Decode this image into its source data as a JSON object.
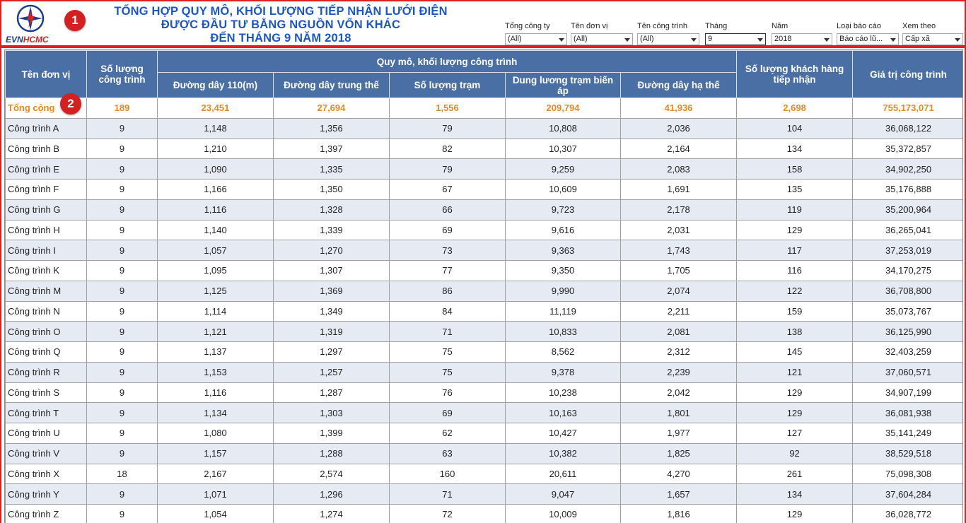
{
  "header": {
    "logo": {
      "evn": "EVN",
      "hcmc": "HCMC"
    },
    "title_lines": [
      "TỔNG HỢP QUY MÔ, KHỐI LƯỢNG TIẾP NHẬN LƯỚI ĐIỆN",
      "ĐƯỢC ĐẦU TƯ BẰNG NGUỒN VỐN KHÁC",
      "ĐẾN THÁNG 9 NĂM 2018"
    ],
    "badge_1": "1",
    "badge_2": "2"
  },
  "filters": [
    {
      "label": "Tổng công ty",
      "value": "(All)"
    },
    {
      "label": "Tên đơn vị",
      "value": "(All)"
    },
    {
      "label": "Tên công trình",
      "value": "(All)"
    },
    {
      "label": "Tháng",
      "value": "9"
    },
    {
      "label": "Năm",
      "value": "2018"
    },
    {
      "label": "Loại báo cáo",
      "value": "Báo cáo lũ..."
    },
    {
      "label": "Xem theo",
      "value": "Cấp xã"
    }
  ],
  "table": {
    "headers": {
      "unit": "Tên đơn vị",
      "count": "Số lượng công trình",
      "group": "Quy mô, khối lượng công trình",
      "line110": "Đường dây 110(m)",
      "medium": "Đường dây trung thế",
      "stations": "Số lượng trạm",
      "capacity": "Dung lương trạm biến áp",
      "low": "Đường dây hạ thế",
      "customers": "Số lượng khách hàng tiếp nhận",
      "value": "Giá trị công trình"
    },
    "total": [
      "Tổng cộng",
      "189",
      "23,451",
      "27,694",
      "1,556",
      "209,794",
      "41,936",
      "2,698",
      "755,173,071"
    ],
    "rows": [
      [
        "Công trình A",
        "9",
        "1,148",
        "1,356",
        "79",
        "10,808",
        "2,036",
        "104",
        "36,068,122"
      ],
      [
        "Công trình B",
        "9",
        "1,210",
        "1,397",
        "82",
        "10,307",
        "2,164",
        "134",
        "35,372,857"
      ],
      [
        "Công trình E",
        "9",
        "1,090",
        "1,335",
        "79",
        "9,259",
        "2,083",
        "158",
        "34,902,250"
      ],
      [
        "Công trình F",
        "9",
        "1,166",
        "1,350",
        "67",
        "10,609",
        "1,691",
        "135",
        "35,176,888"
      ],
      [
        "Công trình G",
        "9",
        "1,116",
        "1,328",
        "66",
        "9,723",
        "2,178",
        "119",
        "35,200,964"
      ],
      [
        "Công trình H",
        "9",
        "1,140",
        "1,339",
        "69",
        "9,616",
        "2,031",
        "129",
        "36,265,041"
      ],
      [
        "Công trình I",
        "9",
        "1,057",
        "1,270",
        "73",
        "9,363",
        "1,743",
        "117",
        "37,253,019"
      ],
      [
        "Công trình K",
        "9",
        "1,095",
        "1,307",
        "77",
        "9,350",
        "1,705",
        "116",
        "34,170,275"
      ],
      [
        "Công trình M",
        "9",
        "1,125",
        "1,369",
        "86",
        "9,990",
        "2,074",
        "122",
        "36,708,800"
      ],
      [
        "Công trình N",
        "9",
        "1,114",
        "1,349",
        "84",
        "11,119",
        "2,211",
        "159",
        "35,073,767"
      ],
      [
        "Công trình O",
        "9",
        "1,121",
        "1,319",
        "71",
        "10,833",
        "2,081",
        "138",
        "36,125,990"
      ],
      [
        "Công trình Q",
        "9",
        "1,137",
        "1,297",
        "75",
        "8,562",
        "2,312",
        "145",
        "32,403,259"
      ],
      [
        "Công trình R",
        "9",
        "1,153",
        "1,257",
        "75",
        "9,378",
        "2,239",
        "121",
        "37,060,571"
      ],
      [
        "Công trình S",
        "9",
        "1,116",
        "1,287",
        "76",
        "10,238",
        "2,042",
        "129",
        "34,907,199"
      ],
      [
        "Công trình T",
        "9",
        "1,134",
        "1,303",
        "69",
        "10,163",
        "1,801",
        "129",
        "36,081,938"
      ],
      [
        "Công trình U",
        "9",
        "1,080",
        "1,399",
        "62",
        "10,427",
        "1,977",
        "127",
        "35,141,249"
      ],
      [
        "Công trình V",
        "9",
        "1,157",
        "1,288",
        "63",
        "10,382",
        "1,825",
        "92",
        "38,529,518"
      ],
      [
        "Công trình X",
        "18",
        "2,167",
        "2,574",
        "160",
        "20,611",
        "4,270",
        "261",
        "75,098,308"
      ],
      [
        "Công trình Y",
        "9",
        "1,071",
        "1,296",
        "71",
        "9,047",
        "1,657",
        "134",
        "37,604,284"
      ],
      [
        "Công trình Z",
        "9",
        "1,054",
        "1,274",
        "72",
        "10,009",
        "1,816",
        "129",
        "36,028,772"
      ]
    ]
  }
}
